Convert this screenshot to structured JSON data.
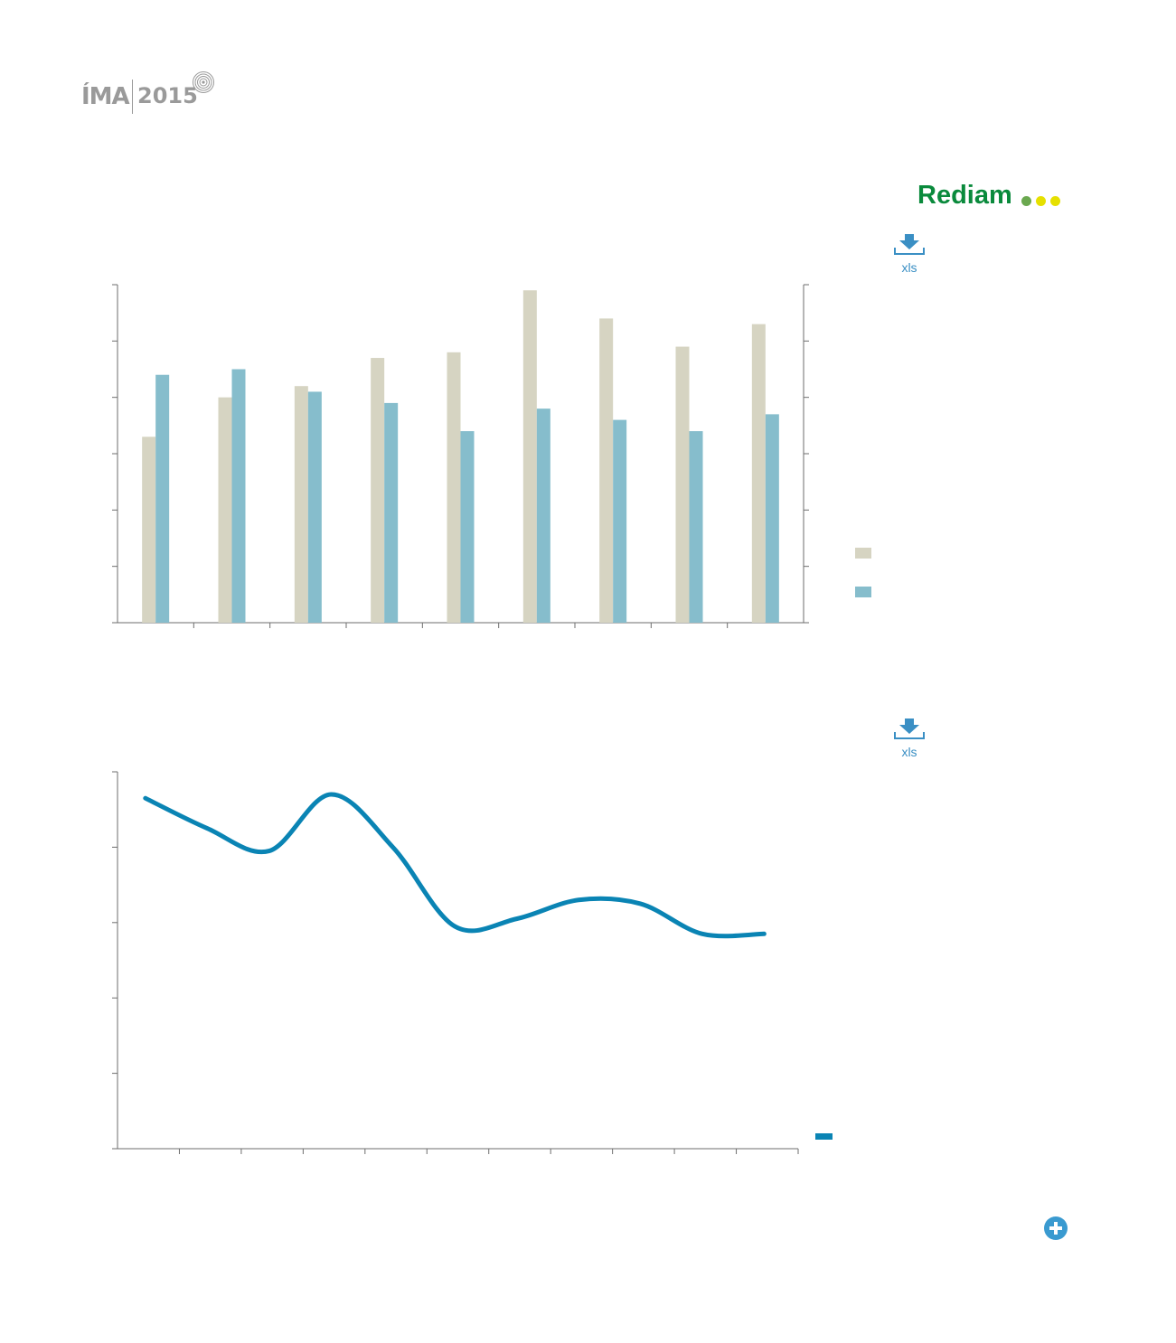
{
  "header": {
    "logo_name": "ÍMA",
    "logo_year": "2015",
    "brand": "Rediam",
    "brand_dot_colors": [
      "#6aa84f",
      "#e6e000",
      "#e6e000"
    ]
  },
  "downloads": [
    {
      "label": "xls",
      "icon": "download-icon"
    },
    {
      "label": "xls",
      "icon": "download-icon"
    }
  ],
  "colors": {
    "series1": "#d6d4c2",
    "series2": "#86bdcc",
    "line": "#0a84b4",
    "axis": "#6e6e6e",
    "accent": "#3a9ad0"
  },
  "chart_data": [
    {
      "type": "bar",
      "categories": [
        "",
        "",
        "",
        "",
        "",
        "",
        "",
        "",
        ""
      ],
      "series": [
        {
          "values": [
            3.3,
            4.0,
            4.2,
            4.7,
            4.8,
            5.9,
            5.4,
            4.9,
            5.3
          ]
        },
        {
          "values": [
            4.4,
            4.5,
            4.1,
            3.9,
            3.4,
            3.8,
            3.6,
            3.4,
            3.7
          ]
        }
      ],
      "ylim": [
        0,
        6
      ],
      "y_ticks": 6,
      "secondary_axis": true,
      "grid": false,
      "legend": "right"
    },
    {
      "type": "line",
      "x": [
        0,
        1,
        2,
        3,
        4,
        5,
        6,
        7,
        8,
        9,
        10
      ],
      "series": [
        {
          "values": [
            4.65,
            4.25,
            3.95,
            4.7,
            4.0,
            2.95,
            3.05,
            3.3,
            3.25,
            2.85,
            2.85
          ]
        }
      ],
      "ylim": [
        0,
        5
      ],
      "y_ticks": 5,
      "x_ticks": 11,
      "grid": false,
      "legend": "bottom-right"
    }
  ],
  "more_button": {
    "icon": "plus-icon"
  }
}
